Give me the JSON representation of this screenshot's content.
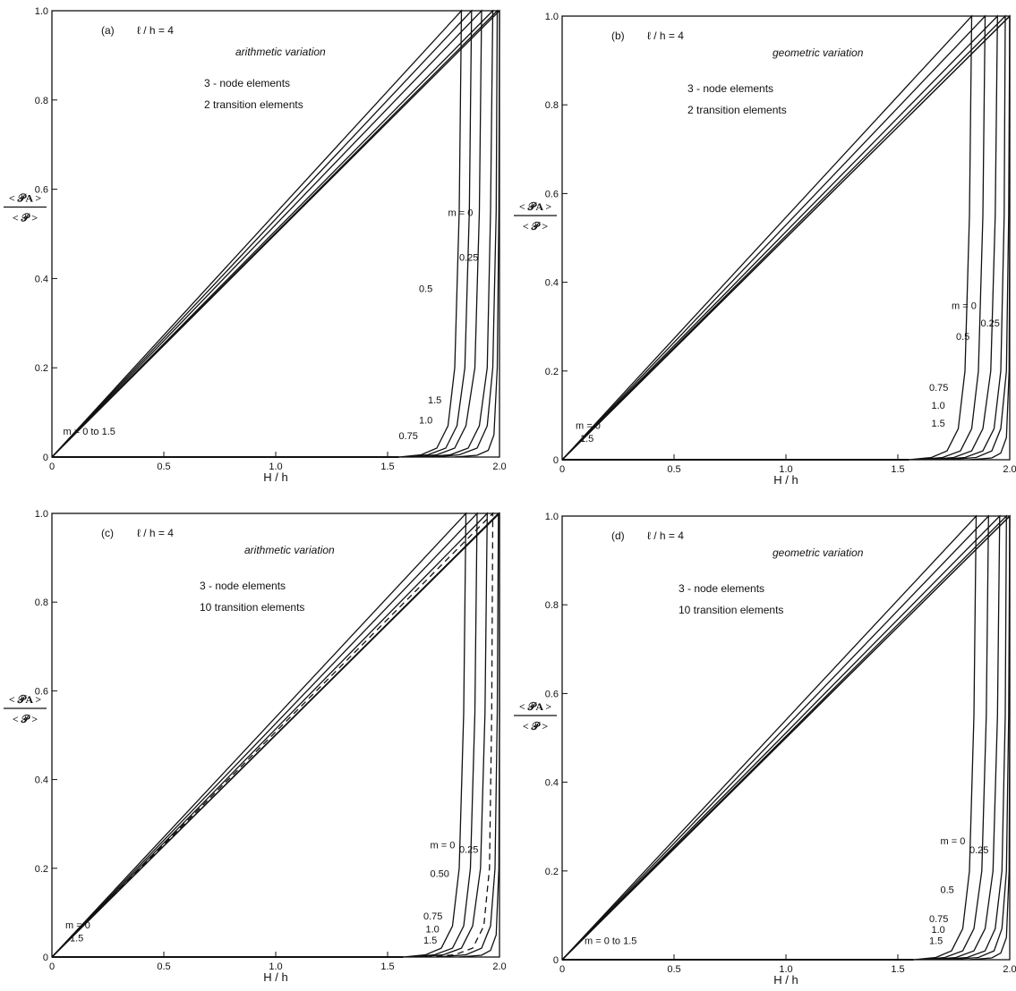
{
  "chart_data": [
    {
      "panel": "a",
      "type": "line",
      "tag": "(a)",
      "param": "ℓ / h = 4",
      "variation": "arithmetic variation",
      "notes": [
        "3 - node elements",
        "2  transition elements"
      ],
      "xlabel": "H / h",
      "ylabel_num": "< 𝒫A >",
      "ylabel_den": "< 𝒫 >",
      "xlim": [
        0,
        2.0
      ],
      "ylim": [
        0,
        1.0
      ],
      "xticks": [
        "0",
        "0.5",
        "1.0",
        "1.5",
        "2.0"
      ],
      "yticks": [
        "0",
        "0.2",
        "0.4",
        "0.6",
        "0.8",
        "1.0"
      ],
      "series": [
        {
          "name": "m = 0",
          "dashed": false,
          "x": [
            1.55,
            1.65,
            1.72,
            1.77,
            1.8,
            1.82,
            1.83
          ],
          "y": [
            0.0,
            0.005,
            0.02,
            0.07,
            0.2,
            0.55,
            1.0
          ]
        },
        {
          "name": "0.25",
          "dashed": false,
          "x": [
            1.57,
            1.68,
            1.76,
            1.81,
            1.845,
            1.865,
            1.875
          ],
          "y": [
            0.0,
            0.005,
            0.02,
            0.07,
            0.2,
            0.55,
            1.0
          ]
        },
        {
          "name": "0.5",
          "dashed": false,
          "x": [
            1.6,
            1.72,
            1.8,
            1.85,
            1.89,
            1.91,
            1.92
          ],
          "y": [
            0.0,
            0.005,
            0.02,
            0.07,
            0.2,
            0.55,
            1.0
          ]
        },
        {
          "name": "0.75",
          "dashed": false,
          "x": [
            1.65,
            1.78,
            1.86,
            1.91,
            1.945,
            1.96,
            1.97
          ],
          "y": [
            0.0,
            0.005,
            0.02,
            0.07,
            0.2,
            0.55,
            1.0
          ]
        },
        {
          "name": "1.0",
          "dashed": false,
          "x": [
            1.7,
            1.82,
            1.9,
            1.945,
            1.97,
            1.985,
            1.99
          ],
          "y": [
            0.0,
            0.005,
            0.02,
            0.07,
            0.2,
            0.55,
            1.0
          ]
        },
        {
          "name": "1.5",
          "dashed": false,
          "x": [
            1.8,
            1.9,
            1.95,
            1.975,
            1.99,
            1.997,
            2.0
          ],
          "y": [
            0.0,
            0.004,
            0.015,
            0.05,
            0.2,
            0.55,
            1.0
          ]
        }
      ],
      "labels": [
        {
          "text": "m = 0",
          "x": 1.77,
          "y": 0.54
        },
        {
          "text": "0.25",
          "x": 1.82,
          "y": 0.44
        },
        {
          "text": "0.5",
          "x": 1.64,
          "y": 0.37
        },
        {
          "text": "1.5",
          "x": 1.68,
          "y": 0.12
        },
        {
          "text": "1.0",
          "x": 1.64,
          "y": 0.075
        },
        {
          "text": "0.75",
          "x": 1.55,
          "y": 0.04
        },
        {
          "text": "m = 0  to 1.5",
          "x": 0.05,
          "y": 0.05
        }
      ]
    },
    {
      "panel": "b",
      "type": "line",
      "tag": "(b)",
      "param": "ℓ / h = 4",
      "variation": "geometric variation",
      "notes": [
        "3 - node elements",
        "2  transition elements"
      ],
      "xlabel": "H / h",
      "ylabel_num": "< 𝒫A >",
      "ylabel_den": "< 𝒫 >",
      "xlim": [
        0,
        2.0
      ],
      "ylim": [
        0,
        1.0
      ],
      "xticks": [
        "0",
        "0.5",
        "1.0",
        "1.5",
        "2.0"
      ],
      "yticks": [
        "0",
        "0.2",
        "0.4",
        "0.6",
        "0.8",
        "1.0"
      ],
      "series": [
        {
          "name": "m = 0",
          "dashed": false,
          "x": [
            1.55,
            1.65,
            1.72,
            1.77,
            1.8,
            1.82,
            1.83
          ],
          "y": [
            0.0,
            0.005,
            0.02,
            0.07,
            0.2,
            0.55,
            1.0
          ]
        },
        {
          "name": "0.25",
          "dashed": false,
          "x": [
            1.58,
            1.7,
            1.78,
            1.83,
            1.86,
            1.88,
            1.89
          ],
          "y": [
            0.0,
            0.005,
            0.02,
            0.07,
            0.2,
            0.55,
            1.0
          ]
        },
        {
          "name": "0.5",
          "dashed": false,
          "x": [
            1.62,
            1.75,
            1.83,
            1.88,
            1.915,
            1.935,
            1.945
          ],
          "y": [
            0.0,
            0.005,
            0.02,
            0.07,
            0.2,
            0.55,
            1.0
          ]
        },
        {
          "name": "0.75",
          "dashed": false,
          "x": [
            1.67,
            1.8,
            1.88,
            1.93,
            1.96,
            1.975,
            1.98
          ],
          "y": [
            0.0,
            0.005,
            0.02,
            0.07,
            0.2,
            0.55,
            1.0
          ]
        },
        {
          "name": "1.0",
          "dashed": false,
          "x": [
            1.72,
            1.85,
            1.92,
            1.96,
            1.985,
            1.995,
            2.0
          ],
          "y": [
            0.0,
            0.005,
            0.02,
            0.07,
            0.2,
            0.55,
            1.0
          ]
        },
        {
          "name": "1.5",
          "dashed": false,
          "x": [
            1.82,
            1.92,
            1.96,
            1.985,
            1.997,
            2.0,
            2.0
          ],
          "y": [
            0.0,
            0.004,
            0.015,
            0.05,
            0.2,
            0.55,
            1.0
          ]
        }
      ],
      "labels": [
        {
          "text": "m = 0",
          "x": 1.74,
          "y": 0.34
        },
        {
          "text": "0.25",
          "x": 1.87,
          "y": 0.3
        },
        {
          "text": "0.5",
          "x": 1.76,
          "y": 0.27
        },
        {
          "text": "0.75",
          "x": 1.64,
          "y": 0.155
        },
        {
          "text": "1.0",
          "x": 1.65,
          "y": 0.115
        },
        {
          "text": "1.5",
          "x": 1.65,
          "y": 0.075
        },
        {
          "text": "m = 0",
          "x": 0.06,
          "y": 0.07
        },
        {
          "text": "1.5",
          "x": 0.08,
          "y": 0.04
        }
      ]
    },
    {
      "panel": "c",
      "type": "line",
      "tag": "(c)",
      "param": "ℓ / h = 4",
      "variation": "arithmetic variation",
      "notes": [
        "3 - node elements",
        "10  transition elements"
      ],
      "xlabel": "H / h",
      "ylabel_num": "< 𝒫A >",
      "ylabel_den": "< 𝒫 >",
      "xlim": [
        0,
        2.0
      ],
      "ylim": [
        0,
        1.0
      ],
      "xticks": [
        "0",
        "0.5",
        "1.0",
        "1.5",
        "2.0"
      ],
      "yticks": [
        "0",
        "0.2",
        "0.4",
        "0.6",
        "0.8",
        "1.0"
      ],
      "series": [
        {
          "name": "m = 0",
          "dashed": false,
          "x": [
            1.57,
            1.67,
            1.74,
            1.79,
            1.82,
            1.84,
            1.85
          ],
          "y": [
            0.0,
            0.005,
            0.02,
            0.07,
            0.2,
            0.55,
            1.0
          ]
        },
        {
          "name": "0.25",
          "dashed": false,
          "x": [
            1.6,
            1.71,
            1.79,
            1.84,
            1.87,
            1.89,
            1.9
          ],
          "y": [
            0.0,
            0.005,
            0.02,
            0.07,
            0.2,
            0.55,
            1.0
          ]
        },
        {
          "name": "0.50",
          "dashed": false,
          "x": [
            1.63,
            1.75,
            1.83,
            1.88,
            1.915,
            1.935,
            1.945
          ],
          "y": [
            0.0,
            0.005,
            0.02,
            0.07,
            0.2,
            0.55,
            1.0
          ]
        },
        {
          "name": "0.75",
          "dashed": true,
          "x": [
            1.67,
            1.8,
            1.88,
            1.93,
            1.955,
            1.965,
            1.97
          ],
          "y": [
            0.0,
            0.005,
            0.02,
            0.07,
            0.2,
            0.55,
            1.0
          ]
        },
        {
          "name": "1.0",
          "dashed": false,
          "x": [
            1.72,
            1.85,
            1.92,
            1.96,
            1.98,
            1.99,
            1.995
          ],
          "y": [
            0.0,
            0.005,
            0.02,
            0.07,
            0.2,
            0.55,
            1.0
          ]
        },
        {
          "name": "1.5",
          "dashed": false,
          "x": [
            1.82,
            1.92,
            1.96,
            1.985,
            1.997,
            2.0,
            2.0
          ],
          "y": [
            0.0,
            0.004,
            0.015,
            0.05,
            0.2,
            0.55,
            1.0
          ]
        }
      ],
      "labels": [
        {
          "text": "m = 0",
          "x": 1.69,
          "y": 0.245
        },
        {
          "text": "0.25",
          "x": 1.82,
          "y": 0.235
        },
        {
          "text": "0.50",
          "x": 1.69,
          "y": 0.18
        },
        {
          "text": "0.75",
          "x": 1.66,
          "y": 0.085
        },
        {
          "text": "1.0",
          "x": 1.67,
          "y": 0.055
        },
        {
          "text": "1.5",
          "x": 1.66,
          "y": 0.03
        },
        {
          "text": "m = 0",
          "x": 0.06,
          "y": 0.065
        },
        {
          "text": "1.5",
          "x": 0.08,
          "y": 0.035
        }
      ]
    },
    {
      "panel": "d",
      "type": "line",
      "tag": "(d)",
      "param": "ℓ / h = 4",
      "variation": "geometric variation",
      "notes": [
        "3 - node elements",
        "10  transition elements"
      ],
      "xlabel": "H / h",
      "ylabel_num": "< 𝒫A >",
      "ylabel_den": "< 𝒫 >",
      "xlim": [
        0,
        2.0
      ],
      "ylim": [
        0,
        1.0
      ],
      "xticks": [
        "0",
        "0.5",
        "1.0",
        "1.5",
        "2.0"
      ],
      "yticks": [
        "0",
        "0.2",
        "0.4",
        "0.6",
        "0.8",
        "1.0"
      ],
      "series": [
        {
          "name": "m = 0",
          "dashed": false,
          "x": [
            1.57,
            1.67,
            1.74,
            1.79,
            1.82,
            1.84,
            1.85
          ],
          "y": [
            0.0,
            0.005,
            0.02,
            0.07,
            0.2,
            0.55,
            1.0
          ]
        },
        {
          "name": "0.25",
          "dashed": false,
          "x": [
            1.6,
            1.71,
            1.79,
            1.84,
            1.875,
            1.895,
            1.905
          ],
          "y": [
            0.0,
            0.005,
            0.02,
            0.07,
            0.2,
            0.55,
            1.0
          ]
        },
        {
          "name": "0.5",
          "dashed": false,
          "x": [
            1.64,
            1.76,
            1.84,
            1.89,
            1.925,
            1.945,
            1.955
          ],
          "y": [
            0.0,
            0.005,
            0.02,
            0.07,
            0.2,
            0.55,
            1.0
          ]
        },
        {
          "name": "0.75",
          "dashed": false,
          "x": [
            1.68,
            1.81,
            1.89,
            1.935,
            1.965,
            1.98,
            1.985
          ],
          "y": [
            0.0,
            0.005,
            0.02,
            0.07,
            0.2,
            0.55,
            1.0
          ]
        },
        {
          "name": "1.0",
          "dashed": false,
          "x": [
            1.73,
            1.86,
            1.93,
            1.965,
            1.985,
            1.995,
            2.0
          ],
          "y": [
            0.0,
            0.005,
            0.02,
            0.07,
            0.2,
            0.55,
            1.0
          ]
        },
        {
          "name": "1.5",
          "dashed": false,
          "x": [
            1.82,
            1.92,
            1.96,
            1.985,
            1.997,
            2.0,
            2.0
          ],
          "y": [
            0.0,
            0.004,
            0.015,
            0.05,
            0.2,
            0.55,
            1.0
          ]
        }
      ],
      "labels": [
        {
          "text": "m = 0",
          "x": 1.69,
          "y": 0.26
        },
        {
          "text": "0.25",
          "x": 1.82,
          "y": 0.24
        },
        {
          "text": "0.5",
          "x": 1.69,
          "y": 0.15
        },
        {
          "text": "0.75",
          "x": 1.64,
          "y": 0.085
        },
        {
          "text": "1.0",
          "x": 1.65,
          "y": 0.06
        },
        {
          "text": "1.5",
          "x": 1.64,
          "y": 0.035
        },
        {
          "text": "m = 0  to 1.5",
          "x": 0.1,
          "y": 0.035
        }
      ]
    }
  ]
}
